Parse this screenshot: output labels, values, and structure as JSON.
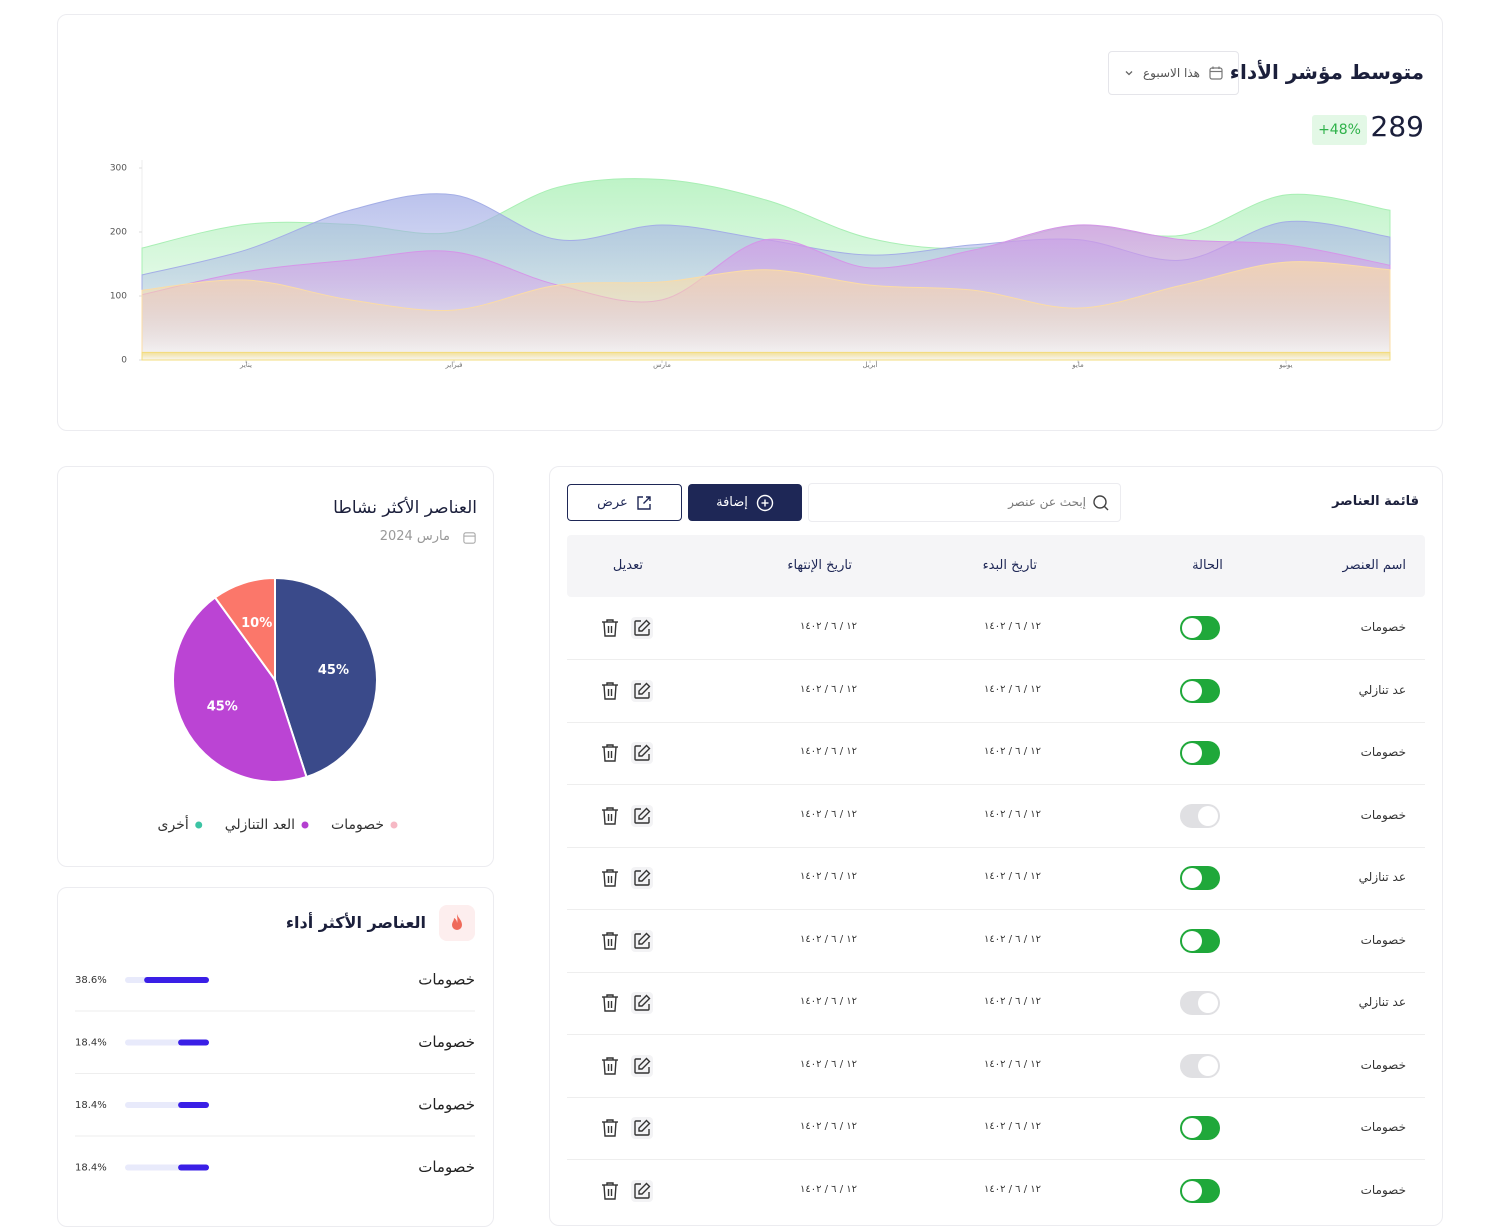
{
  "kpi": {
    "title": "متوسط مؤشر الأداء",
    "period": "هذا الاسبوع",
    "value": "289",
    "change": "+48%"
  },
  "chart_data": [
    {
      "type": "area",
      "x": [
        0,
        0.5,
        1,
        1.5,
        2,
        2.5,
        3,
        3.5,
        4,
        4.5,
        5,
        5.5,
        6
      ],
      "xlim": [
        0,
        6
      ],
      "xticks": [
        {
          "value": 0.5,
          "label": "يناير"
        },
        {
          "value": 1.5,
          "label": "فبراير"
        },
        {
          "value": 2.5,
          "label": "مارس"
        },
        {
          "value": 3.5,
          "label": "أبريل"
        },
        {
          "value": 4.5,
          "label": "مايو"
        },
        {
          "value": 5.5,
          "label": "يونيو"
        }
      ],
      "ylim": [
        0,
        300
      ],
      "yticks": [
        0,
        100,
        200,
        300
      ],
      "series": [
        {
          "color": "#a8efb4",
          "values": [
            175,
            212,
            212,
            200,
            270,
            282,
            250,
            190,
            175,
            210,
            195,
            258,
            234
          ]
        },
        {
          "color": "#a4aee6",
          "values": [
            133,
            172,
            234,
            258,
            188,
            211,
            188,
            164,
            180,
            188,
            156,
            216,
            192
          ]
        },
        {
          "color": "#d596e8",
          "values": [
            102,
            138,
            156,
            169,
            117,
            94,
            188,
            144,
            172,
            211,
            188,
            180,
            148
          ]
        },
        {
          "color": "#fbdca6",
          "values": [
            109,
            125,
            94,
            78,
            117,
            122,
            141,
            117,
            109,
            81,
            117,
            153,
            141
          ]
        },
        {
          "color": "#f3dc7c",
          "values": [
            12,
            12,
            12,
            12,
            12,
            12,
            12,
            12,
            12,
            12,
            12,
            12,
            12
          ]
        }
      ]
    },
    {
      "type": "pie",
      "title": "العناصر الأكثر نشاطا",
      "subtitle": "مارس 2024",
      "categories": [
        "خصومات",
        "العد التنازلي",
        "أخرى"
      ],
      "values": [
        45,
        45,
        10
      ],
      "value_labels": [
        "45%",
        "45%",
        "10%"
      ],
      "colors": [
        "#3a4a8a",
        "#bb44d4",
        "#fb776a"
      ],
      "legend_colors": [
        "#f6b8c4",
        "#b43fd0",
        "#3cc4a4"
      ]
    },
    {
      "type": "hbar",
      "title": "العناصر الأكثر أداء",
      "categories": [
        "خصومات",
        "خصومات",
        "خصومات",
        "خصومات"
      ],
      "values": [
        38.6,
        18.4,
        18.4,
        18.4
      ],
      "value_labels": [
        "38.6%",
        "18.4%",
        "18.4%",
        "18.4%"
      ],
      "xlim": [
        0,
        50
      ],
      "color": "#3a1fe6",
      "track_color": "#e8eafb"
    }
  ],
  "table": {
    "title": "قائمة العناصر",
    "search_placeholder": "إبحث عن عنصر",
    "add_button": "إضافة",
    "view_button": "عرض",
    "columns": [
      "اسم العنصر",
      "الحالة",
      "تاريخ البدء",
      "تاريخ الإنتهاء",
      "تعديل"
    ],
    "rows": [
      [
        "خصومات",
        true,
        "١٢ / ٦ / ١٤٠٢",
        "١٢ / ٦ / ١٤٠٢"
      ],
      [
        "عد تنازلي",
        true,
        "١٢ / ٦ / ١٤٠٢",
        "١٢ / ٦ / ١٤٠٢"
      ],
      [
        "خصومات",
        true,
        "١٢ / ٦ / ١٤٠٢",
        "١٢ / ٦ / ١٤٠٢"
      ],
      [
        "خصومات",
        false,
        "١٢ / ٦ / ١٤٠٢",
        "١٢ / ٦ / ١٤٠٢"
      ],
      [
        "عد تنازلي",
        true,
        "١٢ / ٦ / ١٤٠٢",
        "١٢ / ٦ / ١٤٠٢"
      ],
      [
        "خصومات",
        true,
        "١٢ / ٦ / ١٤٠٢",
        "١٢ / ٦ / ١٤٠٢"
      ],
      [
        "عد تنازلي",
        false,
        "١٢ / ٦ / ١٤٠٢",
        "١٢ / ٦ / ١٤٠٢"
      ],
      [
        "خصومات",
        false,
        "١٢ / ٦ / ١٤٠٢",
        "١٢ / ٦ / ١٤٠٢"
      ],
      [
        "خصومات",
        true,
        "١٢ / ٦ / ١٤٠٢",
        "١٢ / ٦ / ١٤٠٢"
      ],
      [
        "خصومات",
        true,
        "١٢ / ٦ / ١٤٠٢",
        "١٢ / ٦ / ١٤٠٢"
      ]
    ]
  }
}
